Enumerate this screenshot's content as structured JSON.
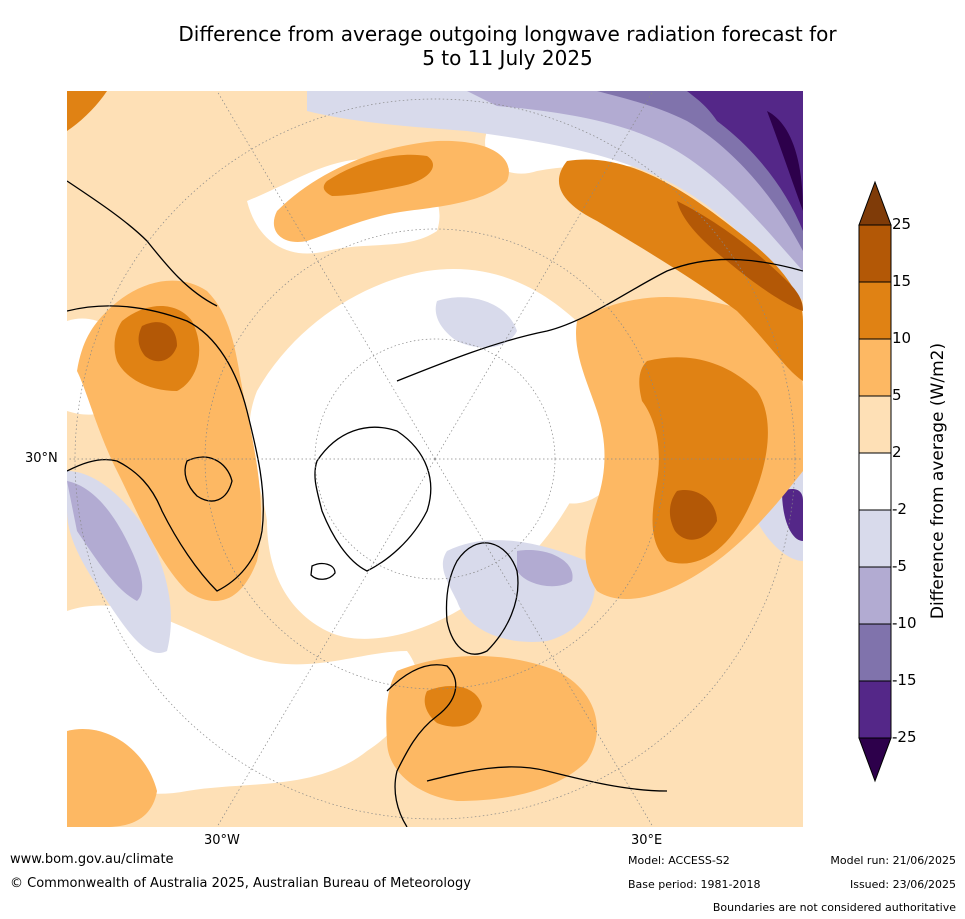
{
  "title_line1": "Difference from average outgoing longwave radiation forecast for",
  "title_line2": "5 to 11 July 2025",
  "map": {
    "lat_label": "30°N",
    "lon_labels": {
      "left": "30°W",
      "right": "30°E"
    }
  },
  "colorbar": {
    "label": "Difference from average (W/m2)",
    "ticks": [
      "25",
      "15",
      "10",
      "5",
      "2",
      "-2",
      "-5",
      "-10",
      "-15",
      "-25"
    ],
    "colors": {
      "over": "#7f3b08",
      "b15_25": "#b35806",
      "b10_15": "#e08214",
      "b5_10": "#fdb863",
      "b2_5": "#fee0b6",
      "neutral": "#ffffff",
      "n2_5": "#d8daeb",
      "n5_10": "#b2abd2",
      "n10_15": "#8073ac",
      "n15_25": "#542788",
      "under": "#2d004b"
    }
  },
  "footer": {
    "website": "www.bom.gov.au/climate",
    "copyright": "© Commonwealth of Australia 2025, Australian Bureau of Meteorology",
    "model": "Model: ACCESS-S2",
    "base_period": "Base period: 1981-2018",
    "model_run": "Model run: 21/06/2025",
    "issued": "Issued: 23/06/2025",
    "disclaimer": "Boundaries are not considered authoritative"
  }
}
